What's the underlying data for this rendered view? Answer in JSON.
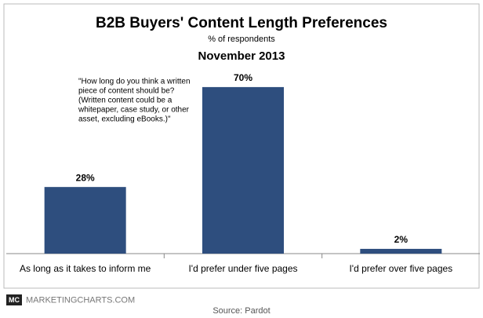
{
  "chart_data": {
    "type": "bar",
    "title": "B2B Buyers' Content Length Preferences",
    "subtitle": "% of respondents",
    "date": "November 2013",
    "annotation": [
      "\"How long do you think a written",
      "piece of content should be?",
      "(Written content could be a",
      "whitepaper, case study, or other",
      "asset, excluding eBooks.)\""
    ],
    "categories": [
      "As long as it takes to inform me",
      "I'd prefer under five pages",
      "I'd prefer over five pages"
    ],
    "values": [
      28,
      70,
      2
    ],
    "value_labels": [
      "28%",
      "70%",
      "2%"
    ],
    "color": "#2e4e7e",
    "logo": "MC",
    "site": "MARKETINGCHARTS.COM",
    "source": "Source: Pardot"
  }
}
